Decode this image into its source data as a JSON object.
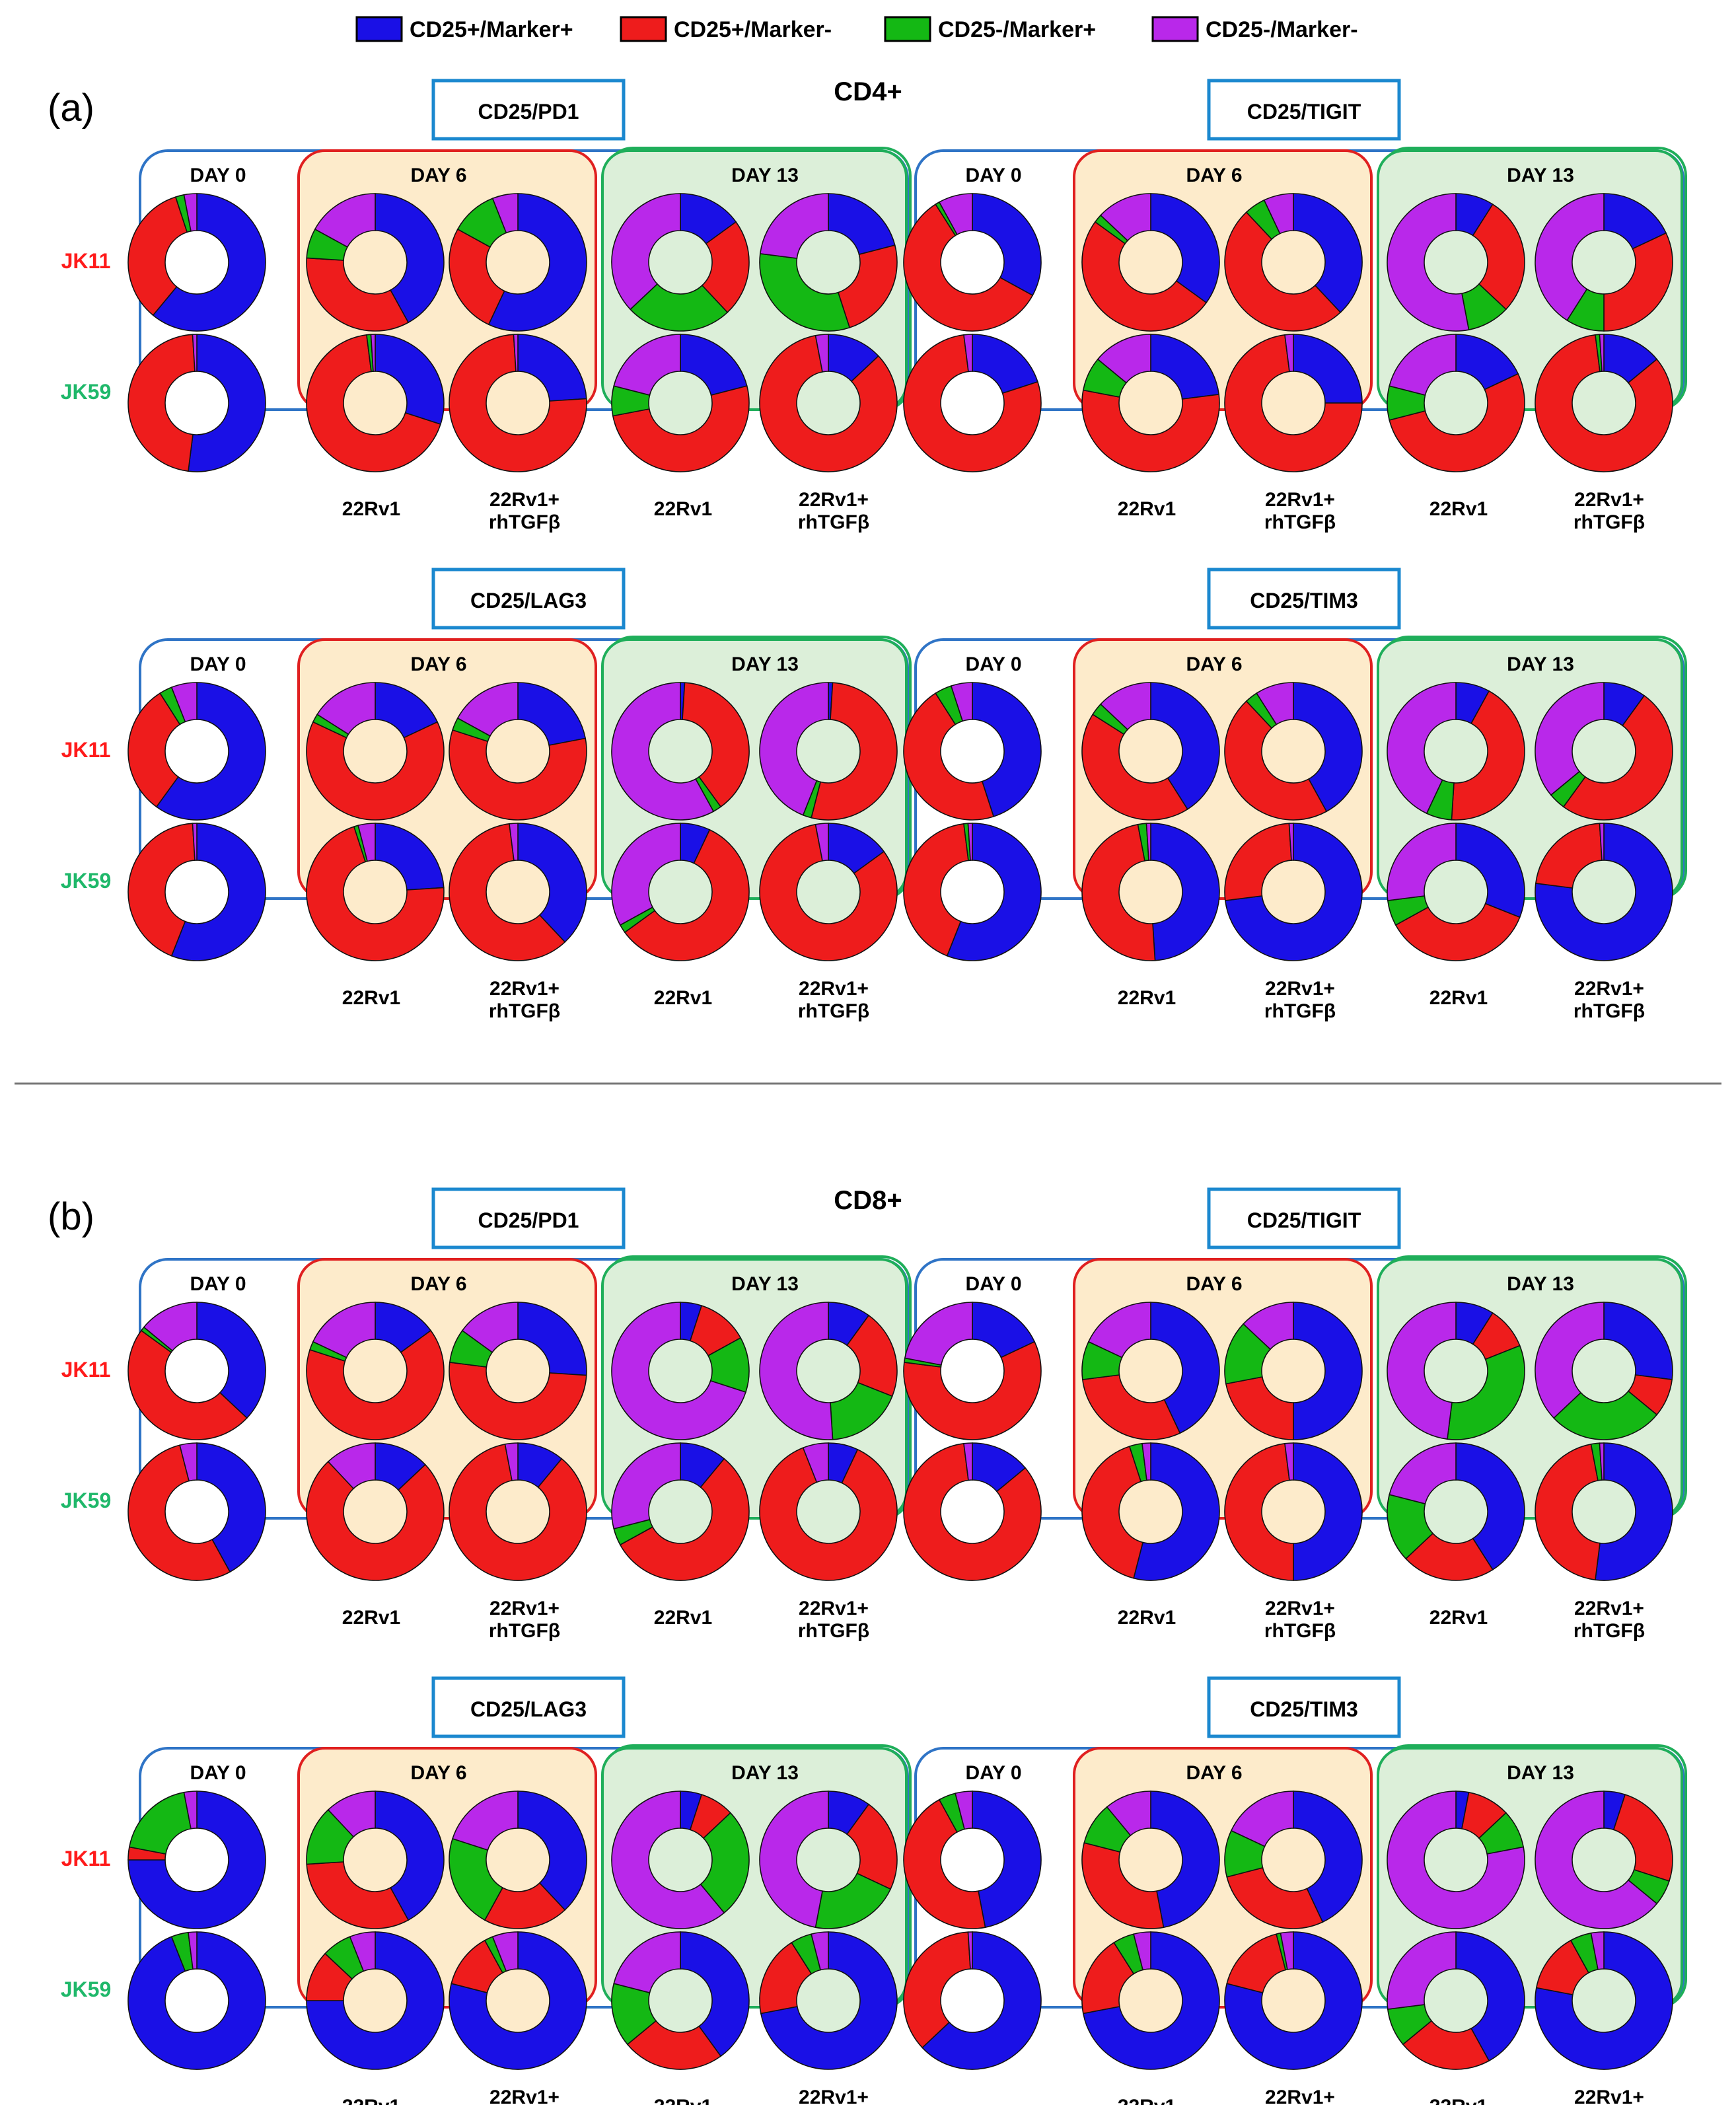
{
  "colors": {
    "cd25pos_markerpos": "#1a10e6",
    "cd25pos_markerneg": "#ee1c1c",
    "cd25neg_markerpos": "#14b814",
    "cd25neg_markerneg": "#b928ea",
    "jk11": "#ff1a1a",
    "jk59": "#1fb86a",
    "day0_border": "#2f74c6",
    "day6_border": "#e02020",
    "day6_fill": "#fdebcb",
    "day13_border": "#1fae5a",
    "day13_fill": "#dcefd9",
    "marker_box": "#1b88cf"
  },
  "legend": [
    {
      "label": "CD25+/Marker+",
      "color_key": "cd25pos_markerpos"
    },
    {
      "label": "CD25+/Marker-",
      "color_key": "cd25pos_markerneg"
    },
    {
      "label": "CD25-/Marker+",
      "color_key": "cd25neg_markerpos"
    },
    {
      "label": "CD25-/Marker-",
      "color_key": "cd25neg_markerneg"
    }
  ],
  "labels": {
    "day0": "DAY 0",
    "day6": "DAY 6",
    "day13": "DAY 13",
    "cond1": "22Rv1",
    "cond2_line1": "22Rv1+",
    "cond2_line2": "rhTGFβ",
    "row1": "JK11",
    "row2": "JK59"
  },
  "chart_data": {
    "type": "pie",
    "variant": "donut",
    "value_units": "percent of cells, estimated from slice angles",
    "slice_order": [
      "CD25+/Marker+",
      "CD25+/Marker-",
      "CD25-/Marker+",
      "CD25-/Marker-"
    ],
    "column_order": [
      "DAY 0",
      "DAY 6 22Rv1",
      "DAY 6 22Rv1+rhTGFβ",
      "DAY 13 22Rv1",
      "DAY 13 22Rv1+rhTGFβ"
    ],
    "panels": [
      {
        "letter": "(a)",
        "title": "CD4+",
        "groups": [
          {
            "marker": "CD25/PD1",
            "JK11": [
              [
                61,
                34,
                2,
                3
              ],
              [
                42,
                34,
                7,
                17
              ],
              [
                57,
                26,
                11,
                6
              ],
              [
                15,
                23,
                25,
                37
              ],
              [
                21,
                24,
                32,
                23
              ]
            ],
            "JK59": [
              [
                52,
                47,
                0,
                1
              ],
              [
                30,
                68,
                1,
                1
              ],
              [
                24,
                75,
                0,
                1
              ],
              [
                21,
                51,
                7,
                21
              ],
              [
                13,
                84,
                0,
                3
              ]
            ]
          },
          {
            "marker": "CD25/TIGIT",
            "JK11": [
              [
                33,
                58,
                1,
                8
              ],
              [
                35,
                50,
                2,
                13
              ],
              [
                38,
                50,
                5,
                7
              ],
              [
                9,
                28,
                10,
                53
              ],
              [
                18,
                32,
                9,
                41
              ]
            ],
            "JK59": [
              [
                20,
                78,
                0,
                2
              ],
              [
                23,
                55,
                8,
                14
              ],
              [
                25,
                73,
                0,
                2
              ],
              [
                18,
                53,
                8,
                21
              ],
              [
                14,
                84,
                1,
                1
              ]
            ]
          },
          {
            "marker": "CD25/LAG3",
            "JK11": [
              [
                60,
                31,
                3,
                6
              ],
              [
                18,
                64,
                2,
                16
              ],
              [
                22,
                58,
                3,
                17
              ],
              [
                1,
                39,
                2,
                58
              ],
              [
                1,
                53,
                2,
                44
              ]
            ],
            "JK59": [
              [
                56,
                43,
                0,
                1
              ],
              [
                24,
                71,
                1,
                4
              ],
              [
                38,
                60,
                0,
                2
              ],
              [
                7,
                58,
                2,
                33
              ],
              [
                15,
                82,
                0,
                3
              ]
            ]
          },
          {
            "marker": "CD25/TIM3",
            "JK11": [
              [
                45,
                46,
                4,
                5
              ],
              [
                41,
                43,
                3,
                13
              ],
              [
                42,
                46,
                3,
                9
              ],
              [
                8,
                43,
                6,
                43
              ],
              [
                10,
                50,
                4,
                36
              ]
            ],
            "JK59": [
              [
                56,
                42,
                1,
                1
              ],
              [
                49,
                48,
                2,
                1
              ],
              [
                73,
                26,
                0,
                1
              ],
              [
                31,
                36,
                6,
                27
              ],
              [
                77,
                22,
                0,
                1
              ]
            ]
          }
        ]
      },
      {
        "letter": "(b)",
        "title": "CD8+",
        "groups": [
          {
            "marker": "CD25/PD1",
            "JK11": [
              [
                37,
                48,
                1,
                14
              ],
              [
                15,
                65,
                2,
                18
              ],
              [
                26,
                51,
                8,
                15
              ],
              [
                5,
                12,
                13,
                70
              ],
              [
                10,
                21,
                18,
                51
              ]
            ],
            "JK59": [
              [
                42,
                54,
                0,
                4
              ],
              [
                13,
                75,
                0,
                12
              ],
              [
                11,
                86,
                0,
                3
              ],
              [
                11,
                56,
                4,
                29
              ],
              [
                7,
                87,
                0,
                6
              ]
            ]
          },
          {
            "marker": "CD25/TIGIT",
            "JK11": [
              [
                18,
                59,
                1,
                22
              ],
              [
                43,
                30,
                9,
                18
              ],
              [
                50,
                22,
                15,
                13
              ],
              [
                9,
                10,
                33,
                48
              ],
              [
                27,
                9,
                27,
                37
              ]
            ],
            "JK59": [
              [
                14,
                84,
                0,
                2
              ],
              [
                54,
                41,
                3,
                2
              ],
              [
                50,
                48,
                0,
                2
              ],
              [
                41,
                22,
                16,
                21
              ],
              [
                52,
                45,
                2,
                1
              ]
            ]
          },
          {
            "marker": "CD25/LAG3",
            "JK11": [
              [
                75,
                3,
                19,
                3
              ],
              [
                42,
                32,
                14,
                12
              ],
              [
                38,
                20,
                22,
                20
              ],
              [
                5,
                8,
                26,
                61
              ],
              [
                10,
                22,
                21,
                47
              ]
            ],
            "JK59": [
              [
                94,
                0,
                4,
                2
              ],
              [
                75,
                12,
                7,
                6
              ],
              [
                79,
                13,
                2,
                6
              ],
              [
                40,
                24,
                15,
                21
              ],
              [
                72,
                19,
                5,
                4
              ]
            ]
          },
          {
            "marker": "CD25/TIM3",
            "JK11": [
              [
                47,
                45,
                4,
                4
              ],
              [
                47,
                32,
                10,
                11
              ],
              [
                43,
                28,
                11,
                18
              ],
              [
                3,
                10,
                9,
                78
              ],
              [
                5,
                25,
                6,
                64
              ]
            ],
            "JK59": [
              [
                63,
                36,
                0,
                1
              ],
              [
                72,
                19,
                5,
                4
              ],
              [
                79,
                17,
                1,
                3
              ],
              [
                42,
                22,
                9,
                27
              ],
              [
                78,
                14,
                5,
                3
              ]
            ]
          }
        ]
      }
    ]
  }
}
